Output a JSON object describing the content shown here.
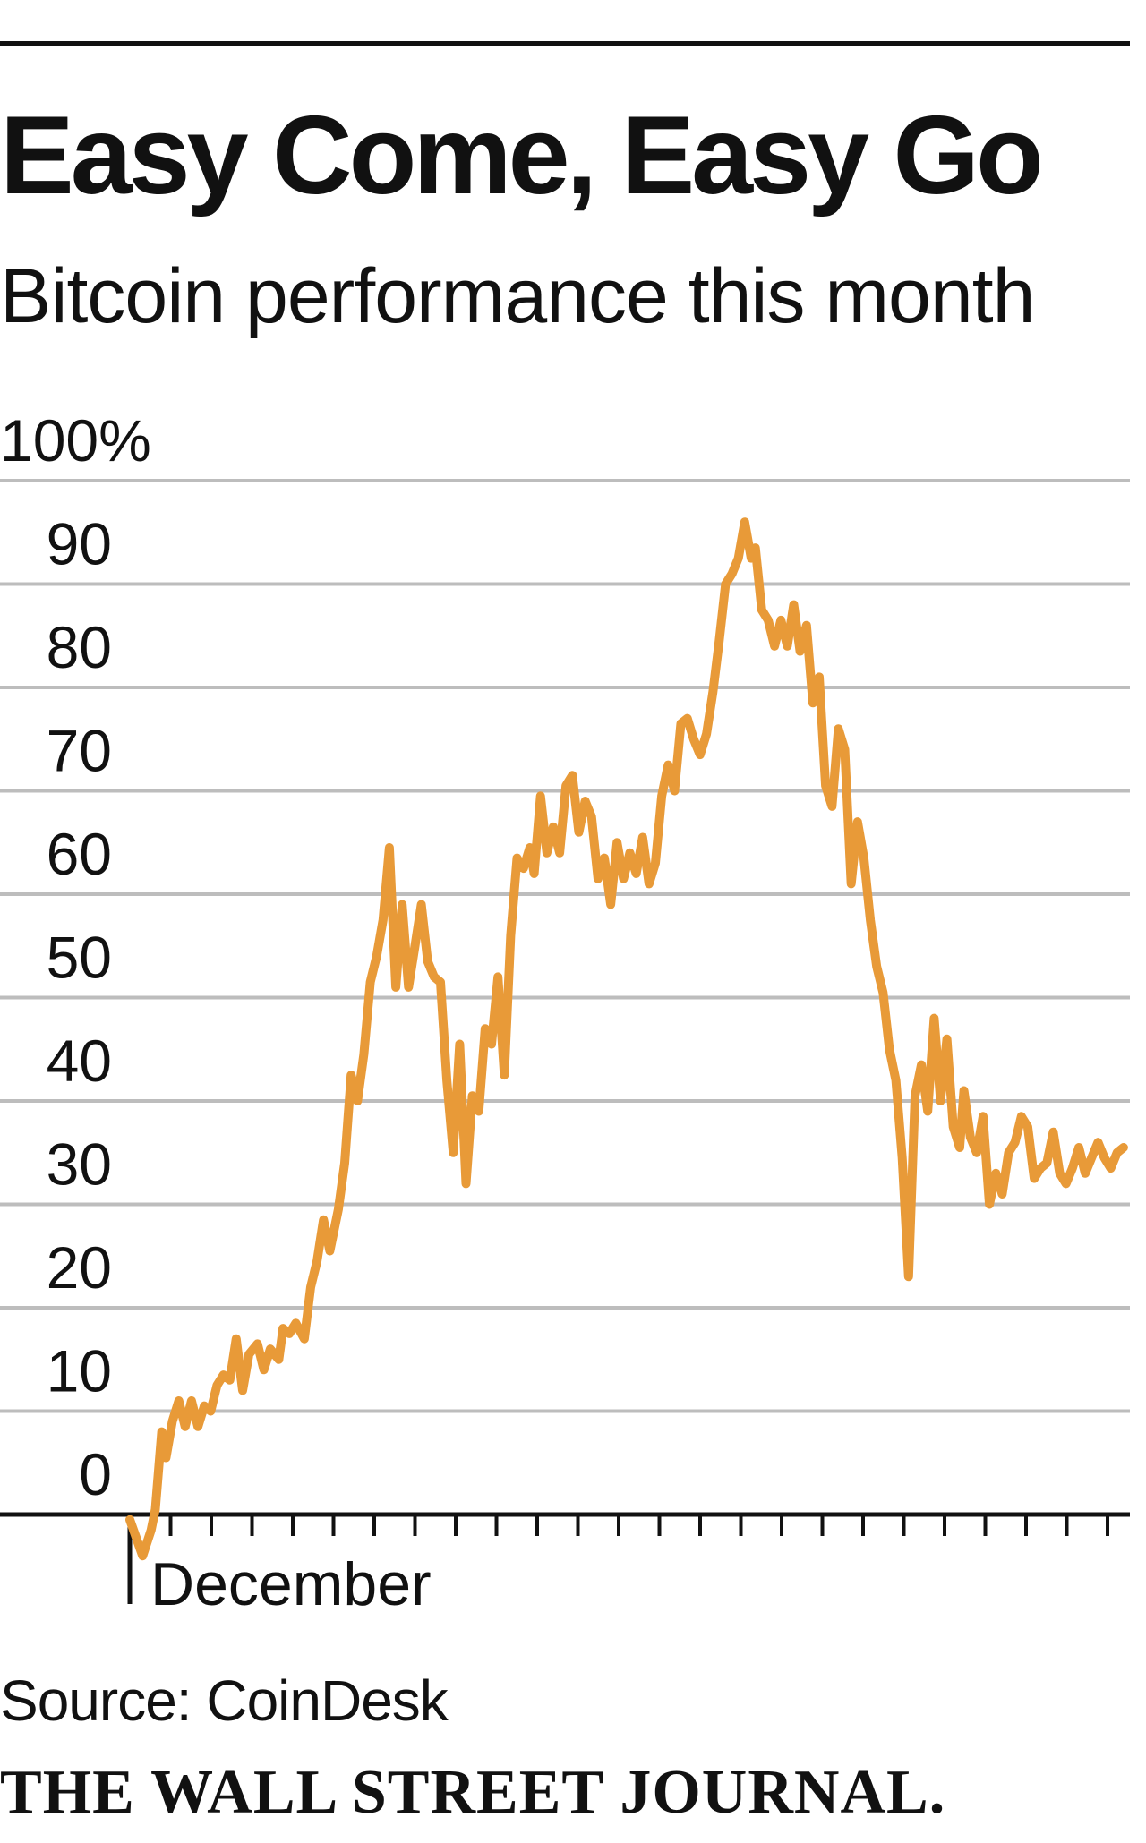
{
  "header": {
    "title": "Easy Come, Easy Go",
    "subtitle": "Bitcoin performance this month"
  },
  "footer": {
    "source": "Source: CoinDesk",
    "brand": "THE WALL STREET JOURNAL."
  },
  "colors": {
    "line": "#E89A38",
    "grid": "#BDBDBD",
    "axis": "#111111",
    "text": "#111111"
  },
  "chart_data": {
    "type": "line",
    "title": "Easy Come, Easy Go",
    "subtitle": "Bitcoin performance this month",
    "xlabel": "December",
    "ylabel": "",
    "ylim": [
      -5,
      100
    ],
    "xlim": [
      0,
      23.5
    ],
    "y_ticks": [
      0,
      10,
      20,
      30,
      40,
      50,
      60,
      70,
      80,
      90,
      100
    ],
    "y_tick_labels": [
      "0",
      "10",
      "20",
      "30",
      "40",
      "50",
      "60",
      "70",
      "80",
      "90",
      "100%"
    ],
    "x_tick_count": 24,
    "x_axis_label": "December",
    "grid": true,
    "series": [
      {
        "name": "Bitcoin performance",
        "x": [
          0.0,
          0.3,
          0.5,
          0.6,
          0.75,
          0.85,
          1.0,
          1.15,
          1.3,
          1.45,
          1.6,
          1.75,
          1.9,
          2.05,
          2.2,
          2.35,
          2.5,
          2.65,
          2.8,
          3.0,
          3.15,
          3.3,
          3.5,
          3.6,
          3.75,
          3.9,
          4.1,
          4.25,
          4.4,
          4.55,
          4.7,
          4.9,
          5.05,
          5.2,
          5.35,
          5.5,
          5.65,
          5.8,
          5.95,
          6.1,
          6.25,
          6.4,
          6.55,
          6.7,
          6.85,
          7.0,
          7.15,
          7.3,
          7.45,
          7.6,
          7.75,
          7.9,
          8.05,
          8.2,
          8.35,
          8.5,
          8.65,
          8.8,
          8.95,
          9.1,
          9.25,
          9.4,
          9.5,
          9.65,
          9.8,
          9.95,
          10.1,
          10.25,
          10.4,
          10.55,
          10.7,
          10.85,
          11.0,
          11.15,
          11.3,
          11.45,
          11.6,
          11.75,
          11.9,
          12.05,
          12.2,
          12.35,
          12.5,
          12.65,
          12.8,
          12.95,
          13.1,
          13.25,
          13.4,
          13.55,
          13.7,
          13.85,
          14.0,
          14.15,
          14.3,
          14.45,
          14.6,
          14.7,
          14.85,
          15.0,
          15.15,
          15.3,
          15.45,
          15.6,
          15.75,
          15.9,
          16.05,
          16.2,
          16.35,
          16.5,
          16.65,
          16.8,
          16.95,
          17.1,
          17.25,
          17.4,
          17.55,
          17.7,
          17.85,
          18.0,
          18.15,
          18.3,
          18.45,
          18.6,
          18.75,
          18.9,
          19.05,
          19.2,
          19.35,
          19.5,
          19.6,
          19.75,
          19.9,
          20.05,
          20.2,
          20.35,
          20.5,
          20.65,
          20.8,
          20.95,
          21.1,
          21.25,
          21.4,
          21.55,
          21.7,
          21.85,
          22.0,
          22.15,
          22.3,
          22.45,
          22.6,
          22.75,
          22.9,
          23.05,
          23.2,
          23.35
        ],
        "values": [
          -0.5,
          -4.0,
          -1.5,
          0.5,
          8.0,
          5.5,
          9.0,
          11.0,
          8.5,
          11.0,
          8.5,
          10.5,
          10.0,
          12.5,
          13.5,
          13.0,
          17.0,
          12.0,
          15.5,
          16.5,
          14.0,
          16.0,
          15.0,
          18.0,
          17.5,
          18.5,
          17.0,
          22.0,
          24.5,
          28.5,
          25.5,
          29.5,
          34.0,
          42.5,
          40.0,
          44.5,
          51.5,
          54.0,
          57.5,
          64.5,
          51.0,
          59.0,
          51.0,
          55.0,
          59.0,
          53.5,
          52.0,
          51.5,
          42.0,
          35.0,
          45.5,
          32.0,
          40.5,
          39.0,
          47.0,
          45.5,
          52.0,
          42.5,
          56.0,
          63.5,
          62.5,
          64.5,
          62.0,
          69.5,
          64.0,
          66.5,
          64.0,
          70.5,
          71.5,
          66.0,
          69.0,
          67.5,
          61.5,
          63.5,
          59.0,
          65.0,
          61.5,
          64.0,
          62.0,
          65.5,
          61.0,
          63.0,
          69.5,
          72.5,
          70.0,
          76.5,
          77.0,
          75.0,
          73.5,
          75.5,
          79.5,
          84.5,
          90.0,
          91.0,
          92.5,
          96.0,
          92.5,
          93.5,
          87.5,
          86.5,
          84.0,
          86.5,
          84.0,
          88.0,
          83.5,
          86.0,
          78.5,
          81.0,
          70.5,
          68.5,
          76.0,
          74.0,
          61.0,
          67.0,
          63.5,
          57.5,
          53.0,
          50.5,
          45.0,
          42.0,
          34.5,
          23.0,
          40.5,
          43.5,
          39.0,
          48.0,
          40.0,
          46.0,
          37.5,
          35.5,
          41.0,
          36.5,
          35.0,
          38.5,
          30.0,
          33.0,
          31.0,
          35.0,
          36.0,
          38.5,
          37.5,
          32.5,
          33.5,
          34.0,
          37.0,
          33.0,
          32.0,
          33.5,
          35.5,
          33.0,
          34.5,
          36.0,
          34.5,
          33.5,
          35.0,
          35.5
        ]
      }
    ]
  }
}
